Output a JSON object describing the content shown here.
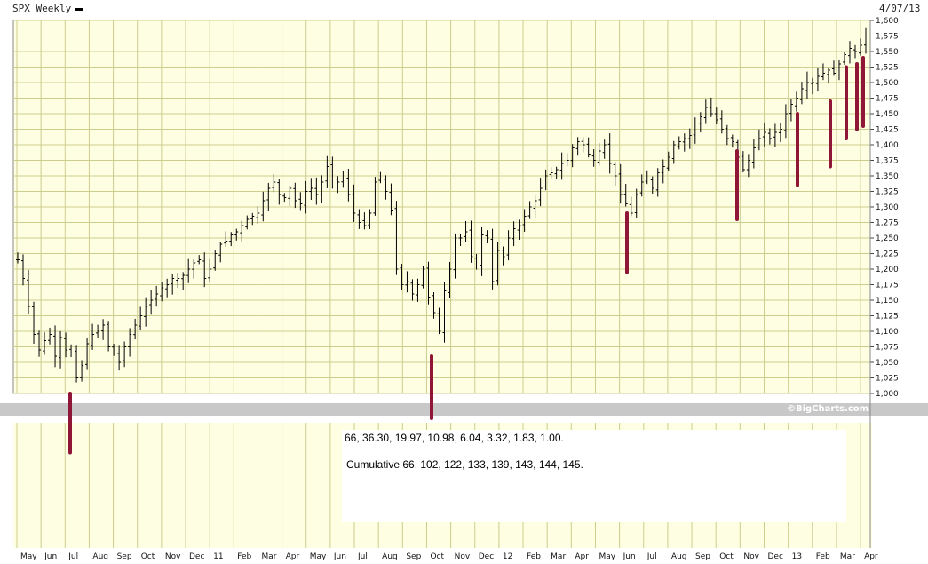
{
  "header": {
    "ticker_label": "SPX Weekly",
    "date_label": "4/07/13"
  },
  "credit": "©BigCharts.com",
  "notes": {
    "line1": "66, 36.30, 19.97, 10.98, 6.04, 3.32, 1.83, 1.00.",
    "line2": "Cumulative 66, 102, 122, 133, 139, 143, 144, 145."
  },
  "colors": {
    "plot_bg": "#fefee2",
    "grid": "#cdcd8e",
    "price_bar": "#000000",
    "marker": "#8f1636",
    "band": "#c8c8c8"
  },
  "chart_data": {
    "type": "bar",
    "title": "SPX Weekly",
    "ylim": [
      1000,
      1600
    ],
    "y_ticks": [
      "1,000",
      "1,025",
      "1,050",
      "1,075",
      "1,100",
      "1,125",
      "1,150",
      "1,175",
      "1,200",
      "1,225",
      "1,250",
      "1,275",
      "1,300",
      "1,325",
      "1,350",
      "1,375",
      "1,400",
      "1,425",
      "1,450",
      "1,475",
      "1,500",
      "1,525",
      "1,550",
      "1,575",
      "1,600"
    ],
    "x_ticks": [
      "May",
      "Jun",
      "Jul",
      "Aug",
      "Sep",
      "Oct",
      "Nov",
      "Dec",
      "11",
      "Feb",
      "Mar",
      "Apr",
      "May",
      "Jun",
      "Jul",
      "Aug",
      "Sep",
      "Oct",
      "Nov",
      "Dec",
      "12",
      "Feb",
      "Mar",
      "Apr",
      "May",
      "Jun",
      "Jul",
      "Aug",
      "Sep",
      "Oct",
      "Nov",
      "Dec",
      "13",
      "Feb",
      "Mar",
      "Apr"
    ],
    "weekly_closes": [
      1215,
      1185,
      1140,
      1095,
      1070,
      1085,
      1095,
      1060,
      1090,
      1070,
      1065,
      1025,
      1045,
      1080,
      1095,
      1100,
      1110,
      1075,
      1065,
      1050,
      1075,
      1095,
      1110,
      1125,
      1140,
      1150,
      1160,
      1170,
      1175,
      1185,
      1185,
      1190,
      1200,
      1210,
      1215,
      1185,
      1200,
      1225,
      1240,
      1245,
      1255,
      1260,
      1270,
      1280,
      1285,
      1290,
      1310,
      1330,
      1340,
      1320,
      1315,
      1330,
      1310,
      1305,
      1325,
      1330,
      1320,
      1340,
      1365,
      1345,
      1340,
      1345,
      1320,
      1290,
      1275,
      1270,
      1290,
      1340,
      1345,
      1325,
      1295,
      1200,
      1175,
      1180,
      1160,
      1175,
      1200,
      1155,
      1130,
      1100,
      1165,
      1200,
      1250,
      1250,
      1260,
      1220,
      1205,
      1255,
      1250,
      1180,
      1230,
      1220,
      1250,
      1265,
      1270,
      1285,
      1300,
      1310,
      1330,
      1350,
      1355,
      1360,
      1370,
      1375,
      1395,
      1405,
      1400,
      1385,
      1375,
      1390,
      1400,
      1370,
      1350,
      1320,
      1305,
      1290,
      1320,
      1340,
      1345,
      1330,
      1355,
      1365,
      1380,
      1400,
      1405,
      1410,
      1415,
      1435,
      1445,
      1460,
      1450,
      1440,
      1425,
      1410,
      1405,
      1380,
      1360,
      1375,
      1395,
      1410,
      1420,
      1410,
      1420,
      1425,
      1450,
      1465,
      1475,
      1490,
      1500,
      1500,
      1510,
      1515,
      1520,
      1515,
      1530,
      1545,
      1555,
      1550,
      1560,
      1575
    ],
    "markers": [
      {
        "date": "Jul 2010",
        "top": 1000,
        "bottom": 905
      },
      {
        "date": "Oct 2011",
        "top": 1060,
        "bottom": 960
      },
      {
        "date": "Jun 2012",
        "top": 1290,
        "bottom": 1195
      },
      {
        "date": "Nov 2012",
        "top": 1390,
        "bottom": 1280
      },
      {
        "date": "Jan 2013",
        "top": 1450,
        "bottom": 1335
      },
      {
        "date": "Mar 2013",
        "top": 1470,
        "bottom": 1365
      },
      {
        "date": "Mar 2013",
        "top": 1525,
        "bottom": 1410
      },
      {
        "date": "Apr 2013",
        "top": 1530,
        "bottom": 1425
      },
      {
        "date": "Apr 2013",
        "top": 1540,
        "bottom": 1430
      }
    ],
    "grid": true
  }
}
